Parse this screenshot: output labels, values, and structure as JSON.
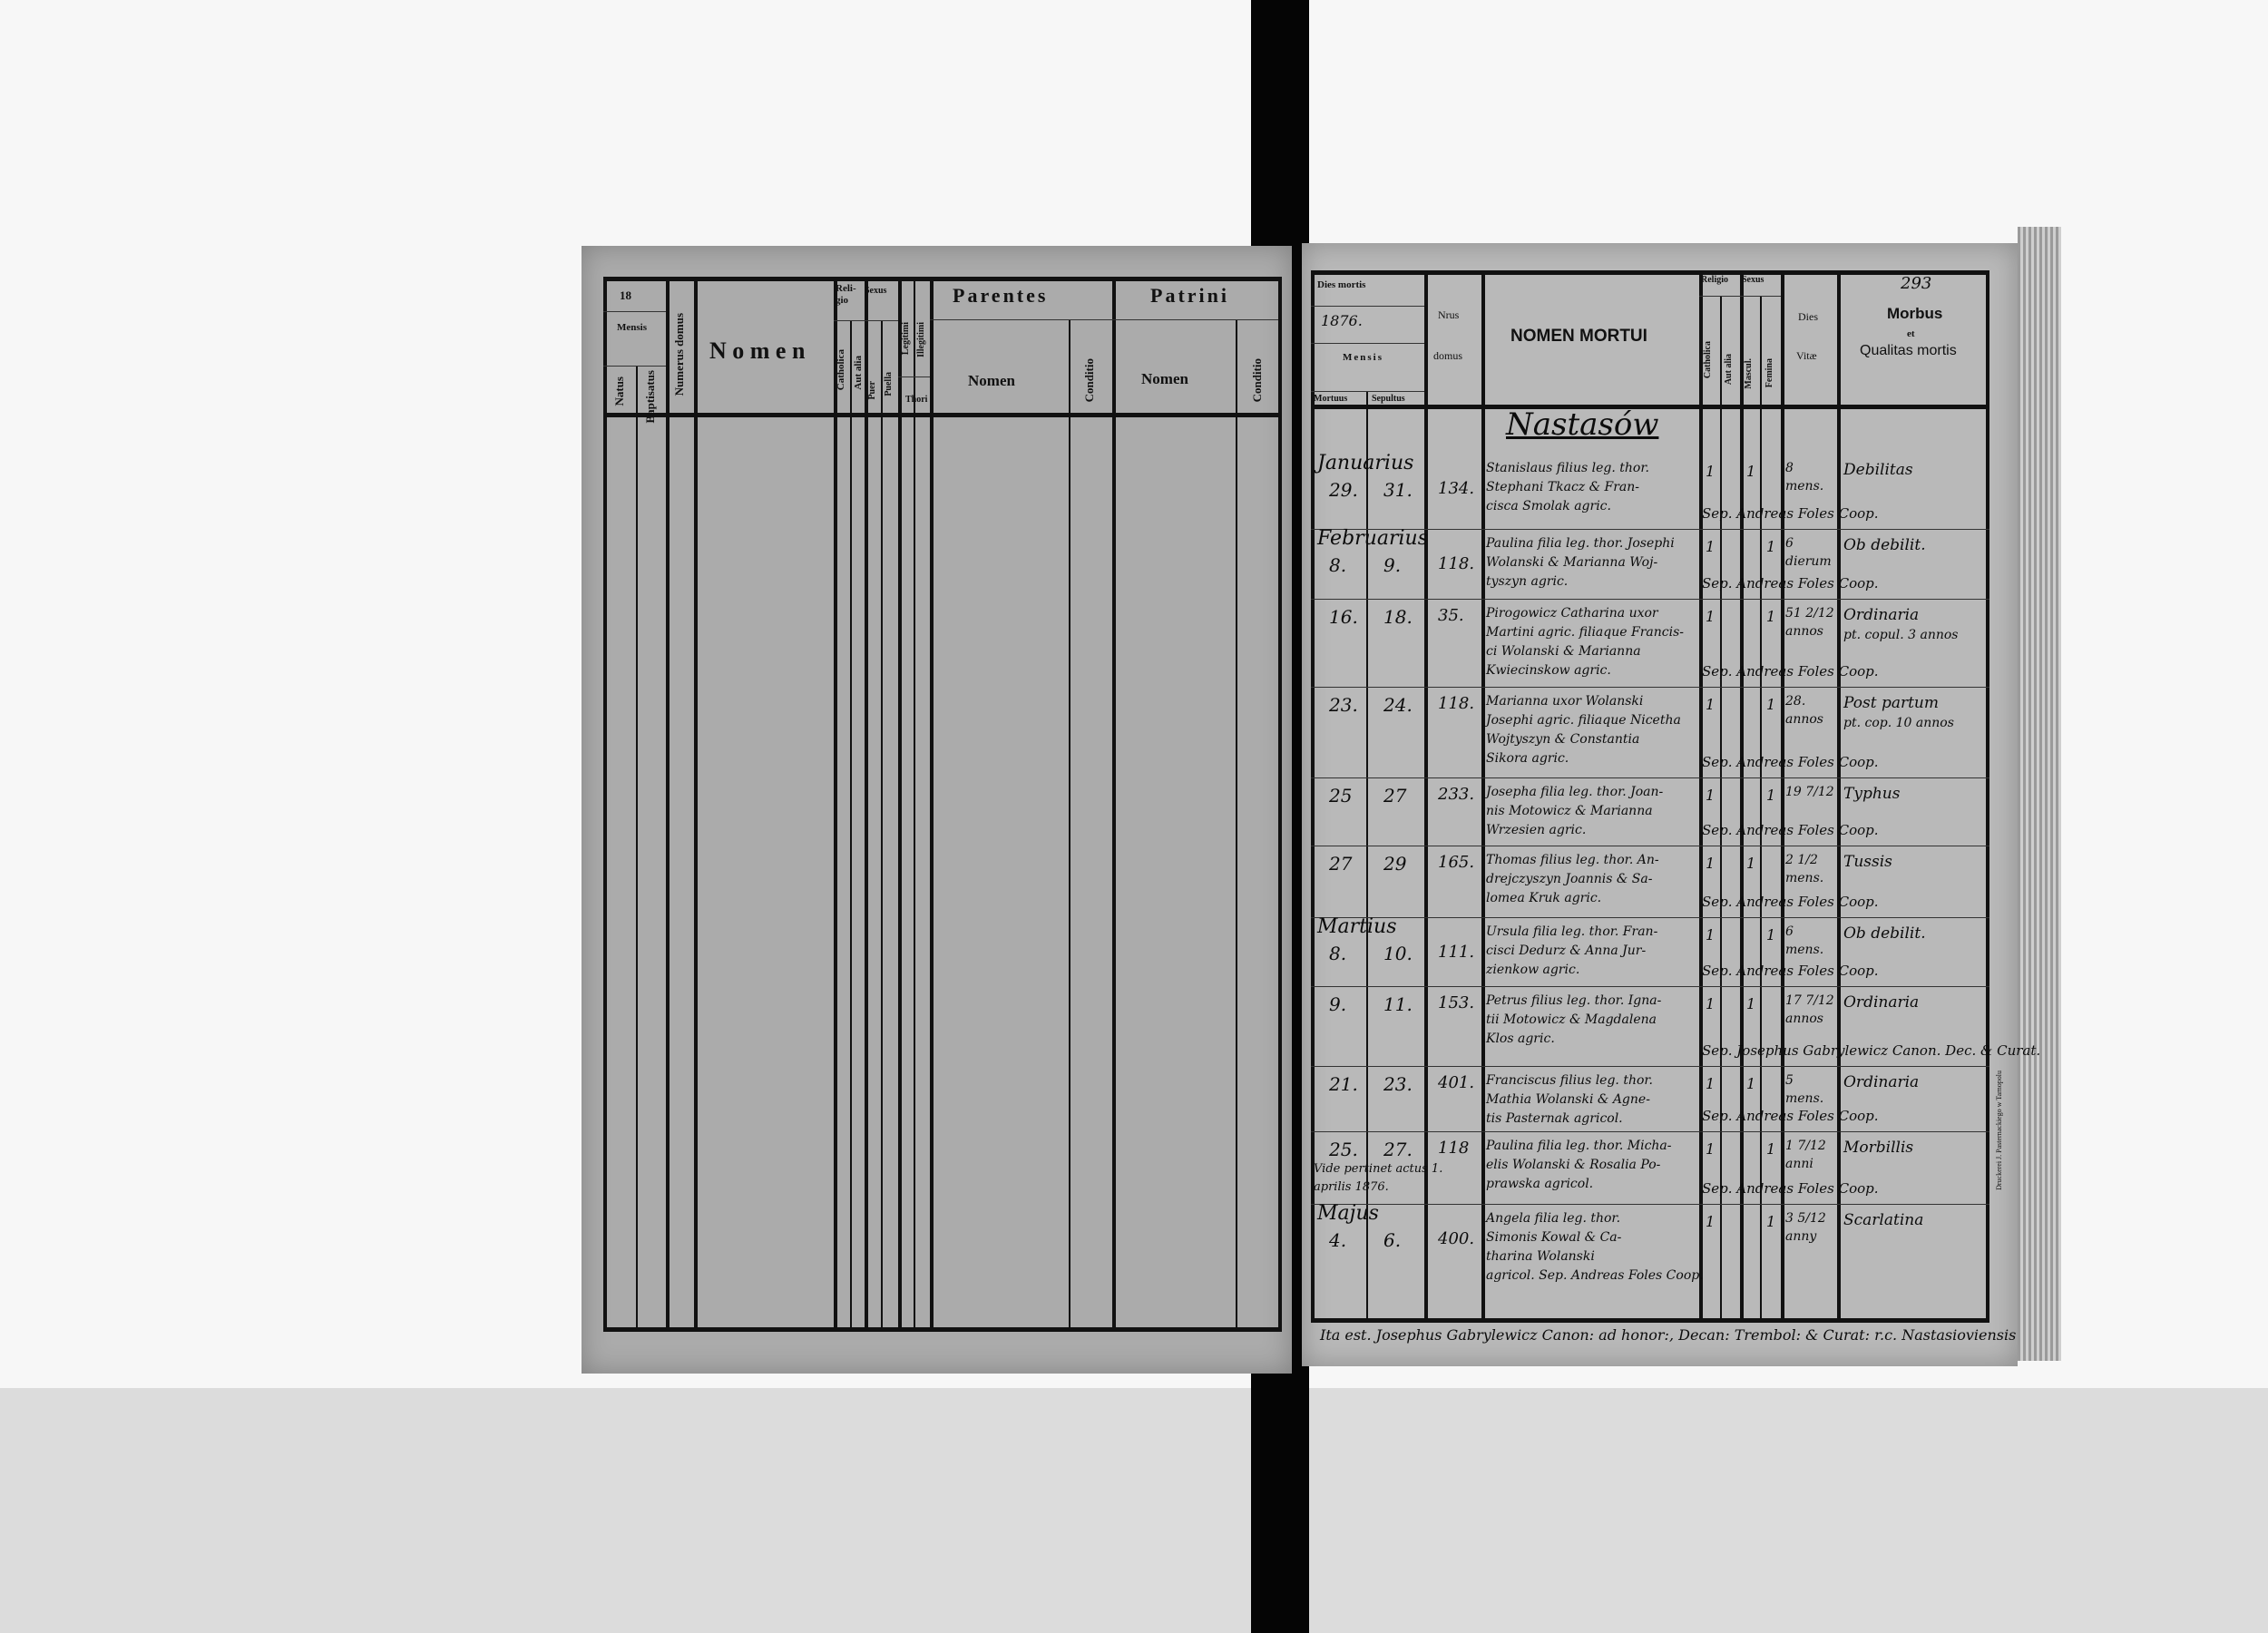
{
  "left_page": {
    "header": {
      "year_prefix": "18",
      "mensis": "Mensis",
      "natus": "Natus",
      "baptisatus": "Baptisatus",
      "numerus_domus": "Numerus domus",
      "nomen": "N o m e n",
      "religio": "Reli-gio",
      "catholica": "Catholica",
      "aut_alia": "Aut alia",
      "sexus": "Sexus",
      "puer": "Puer",
      "puella": "Puella",
      "legitimi": "Legitimi",
      "illegitimi": "Illegitimi",
      "thori": "Thori",
      "parentes": "Parentes",
      "parentes_nomen": "Nomen",
      "parentes_conditio": "Conditio",
      "patrini": "Patrini",
      "patrini_nomen": "Nomen",
      "patrini_conditio": "Conditio"
    }
  },
  "right_page": {
    "page_number": "293",
    "header": {
      "dies_mortis": "Dies mortis",
      "year": "1876.",
      "mensis": "Mensis",
      "mortuus": "Mortuus",
      "sepultus": "Sepultus",
      "nrus": "Nrus",
      "domus": "domus",
      "nomen_mortui": "NOMEN MORTUI",
      "religio": "Religio",
      "catholica": "Catholica",
      "aut_alia": "Aut alia",
      "sexus": "Sexus",
      "mascul": "Mascul.",
      "femina": "Femina",
      "dies": "Dies",
      "vitae": "Vitæ",
      "morbus": "Morbus",
      "et": "et",
      "qualitas": "Qualitas mortis"
    },
    "parish_title": "Nastasów",
    "entries": [
      {
        "month": "Januarius",
        "mortuus": "29.",
        "sepultus": "31.",
        "domus": "134.",
        "nomen": [
          "Stanislaus filius leg. thor.",
          "Stephani Tkacz & Fran-",
          "cisca Smolak agric."
        ],
        "catholica": "1",
        "mascul": "1",
        "femina": "",
        "vitae": [
          "8",
          "mens."
        ],
        "morbus": [
          "Debilitas"
        ],
        "sepelivit": "Sep. Andreas Foles Coop."
      },
      {
        "month": "Februarius",
        "mortuus": "8.",
        "sepultus": "9.",
        "domus": "118.",
        "nomen": [
          "Paulina filia leg. thor. Josephi",
          "Wolanski & Marianna Woj-",
          "tyszyn agric."
        ],
        "catholica": "1",
        "mascul": "",
        "femina": "1",
        "vitae": [
          "6",
          "dierum"
        ],
        "morbus": [
          "Ob debilit."
        ],
        "sepelivit": "Sep. Andreas Foles Coop."
      },
      {
        "month": "",
        "mortuus": "16.",
        "sepultus": "18.",
        "domus": "35.",
        "nomen": [
          "Pirogowicz Catharina uxor",
          "Martini agric. filiaque Francis-",
          "ci Wolanski & Marianna",
          "Kwiecinskow agric."
        ],
        "catholica": "1",
        "mascul": "",
        "femina": "1",
        "vitae": [
          "51 2/12",
          "annos"
        ],
        "morbus": [
          "Ordinaria",
          "pt. copul. 3 annos"
        ],
        "sepelivit": "Sep. Andreas Foles Coop."
      },
      {
        "month": "",
        "mortuus": "23.",
        "sepultus": "24.",
        "domus": "118.",
        "nomen": [
          "Marianna uxor Wolanski",
          "Josephi agric. filiaque Nicetha",
          "Wojtyszyn & Constantia",
          "Sikora agric."
        ],
        "catholica": "1",
        "mascul": "",
        "femina": "1",
        "vitae": [
          "28.",
          "annos"
        ],
        "morbus": [
          "Post partum",
          "pt. cop. 10 annos"
        ],
        "sepelivit": "Sep. Andreas Foles Coop."
      },
      {
        "month": "",
        "mortuus": "25",
        "sepultus": "27",
        "domus": "233.",
        "nomen": [
          "Josepha filia leg. thor. Joan-",
          "nis Motowicz & Marianna",
          "Wrzesien agric."
        ],
        "catholica": "1",
        "mascul": "",
        "femina": "1",
        "vitae": [
          "19 7/12",
          ""
        ],
        "morbus": [
          "Typhus"
        ],
        "sepelivit": "Sep. Andreas Foles Coop."
      },
      {
        "month": "",
        "mortuus": "27",
        "sepultus": "29",
        "domus": "165.",
        "nomen": [
          "Thomas filius leg. thor. An-",
          "drejczyszyn Joannis & Sa-",
          "lomea Kruk agric."
        ],
        "catholica": "1",
        "mascul": "1",
        "femina": "",
        "vitae": [
          "2 1/2",
          "mens."
        ],
        "morbus": [
          "Tussis"
        ],
        "sepelivit": "Sep. Andreas Foles Coop."
      },
      {
        "month": "Martius",
        "mortuus": "8.",
        "sepultus": "10.",
        "domus": "111.",
        "nomen": [
          "Ursula filia leg. thor. Fran-",
          "cisci Dedurz & Anna Jur-",
          "zienkow agric."
        ],
        "catholica": "1",
        "mascul": "",
        "femina": "1",
        "vitae": [
          "6",
          "mens."
        ],
        "morbus": [
          "Ob debilit."
        ],
        "sepelivit": "Sep. Andreas Foles Coop."
      },
      {
        "month": "",
        "mortuus": "9.",
        "sepultus": "11.",
        "domus": "153.",
        "nomen": [
          "Petrus filius leg. thor. Igna-",
          "tii Motowicz & Magdalena",
          "Klos agric."
        ],
        "catholica": "1",
        "mascul": "1",
        "femina": "",
        "vitae": [
          "17 7/12",
          "annos"
        ],
        "morbus": [
          "Ordinaria"
        ],
        "sepelivit": "Sep. Josephus Gabrylewicz Canon. Dec. & Curat."
      },
      {
        "month": "",
        "mortuus": "21.",
        "sepultus": "23.",
        "domus": "401.",
        "nomen": [
          "Franciscus filius leg. thor.",
          "Mathia Wolanski & Agne-",
          "tis Pasternak agricol."
        ],
        "catholica": "1",
        "mascul": "1",
        "femina": "",
        "vitae": [
          "5",
          "mens."
        ],
        "morbus": [
          "Ordinaria"
        ],
        "sepelivit": "Sep. Andreas Foles Coop."
      },
      {
        "month": "",
        "mortuus": "25.",
        "sepultus": "27.",
        "domus": "118",
        "note": "Vide pertinet actus 1. aprilis 1876.",
        "nomen": [
          "Paulina filia leg. thor. Micha-",
          "elis Wolanski & Rosalia Po-",
          "prawska agricol."
        ],
        "catholica": "1",
        "mascul": "",
        "femina": "1",
        "vitae": [
          "1 7/12",
          "anni"
        ],
        "morbus": [
          "Morbillis"
        ],
        "sepelivit": "Sep. Andreas Foles Coop."
      },
      {
        "month": "Majus",
        "mortuus": "4.",
        "sepultus": "6.",
        "domus": "400.",
        "nomen": [
          "Angela filia leg. thor.",
          "Simonis Kowal & Ca-",
          "tharina Wolanski",
          "agricol. Sep. Andreas Foles Coop."
        ],
        "catholica": "1",
        "mascul": "",
        "femina": "1",
        "vitae": [
          "3 5/12",
          "anny"
        ],
        "morbus": [
          "Scarlatina"
        ],
        "sepelivit": ""
      }
    ],
    "signature": "Ita est. Josephus Gabrylewicz Canon: ad honor:, Decan: Trembol: & Curat: r.c. Nastasioviensis",
    "printer_imprint": "Druckerei J. Pasternackiego w Tarnopolu"
  }
}
